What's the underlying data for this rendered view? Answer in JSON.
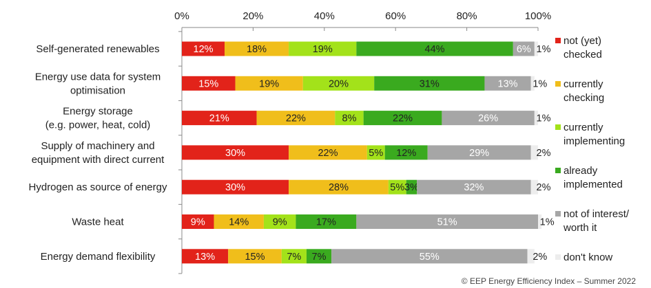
{
  "chart_data": {
    "type": "bar",
    "orientation": "horizontal",
    "stacked": true,
    "title": "",
    "xlabel": "",
    "ylabel": "",
    "xlim": [
      0,
      100
    ],
    "x_ticks": [
      "0%",
      "20%",
      "40%",
      "60%",
      "80%",
      "100%"
    ],
    "x_axis_position": "top",
    "grid": false,
    "legend_position": "right",
    "categories": [
      "Self-generated renewables",
      "Energy use data for system optimisation",
      "Energy storage (e.g. power, heat, cold)",
      "Supply of machinery and equipment with direct current",
      "Hydrogen as source of energy",
      "Waste heat",
      "Energy demand flexibility"
    ],
    "category_lines": [
      [
        "Self-generated renewables"
      ],
      [
        "Energy use data for system",
        "optimisation"
      ],
      [
        "Energy storage",
        "(e.g. power, heat, cold)"
      ],
      [
        "Supply of machinery and",
        "equipment with direct current"
      ],
      [
        "Hydrogen as source of energy"
      ],
      [
        "Waste heat"
      ],
      [
        "Energy demand flexibility"
      ]
    ],
    "series": [
      {
        "name": "not (yet) checked",
        "legend_lines": [
          "not (yet)",
          "checked"
        ],
        "color": "#e2231a",
        "values": [
          12,
          15,
          21,
          30,
          30,
          9,
          13
        ]
      },
      {
        "name": "currently checking",
        "legend_lines": [
          "currently",
          "checking"
        ],
        "color": "#f0be1b",
        "values": [
          18,
          19,
          22,
          22,
          28,
          14,
          15
        ]
      },
      {
        "name": "currently implementing",
        "legend_lines": [
          "currently",
          "implementing"
        ],
        "color": "#a3e21a",
        "values": [
          19,
          20,
          8,
          5,
          5,
          9,
          7
        ]
      },
      {
        "name": "already implemented",
        "legend_lines": [
          "already",
          "implemented"
        ],
        "color": "#3aaa1f",
        "values": [
          44,
          31,
          22,
          12,
          3,
          17,
          7
        ]
      },
      {
        "name": "not of interest/ worth it",
        "legend_lines": [
          "not of interest/",
          "worth it"
        ],
        "color": "#a6a6a6",
        "values": [
          6,
          13,
          26,
          29,
          32,
          51,
          55
        ]
      },
      {
        "name": "don't know",
        "legend_lines": [
          "don't know"
        ],
        "color": "#ededed",
        "values": [
          1,
          1,
          1,
          2,
          2,
          1,
          2
        ]
      }
    ],
    "annotation": "© EEP Energy Efficiency Index – Summer 2022"
  }
}
